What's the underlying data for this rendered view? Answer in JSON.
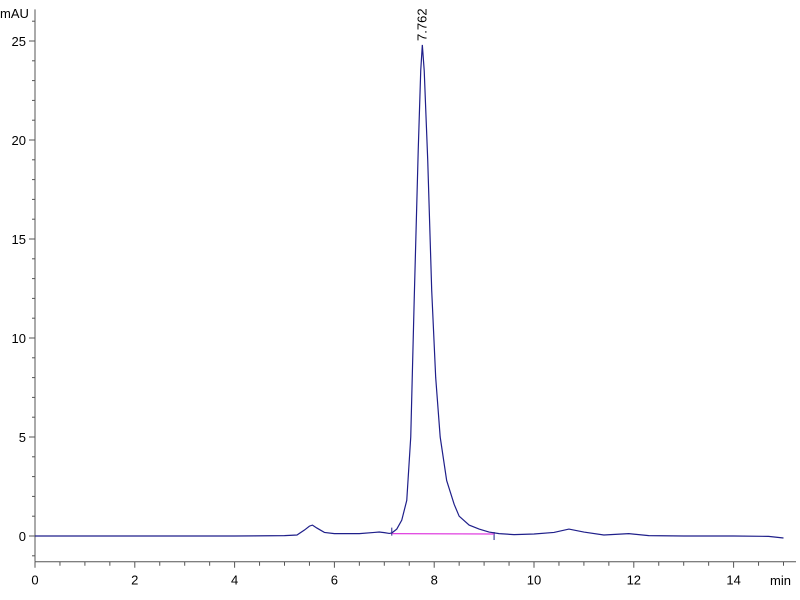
{
  "chart_data": {
    "type": "line",
    "xlabel": "min",
    "ylabel": "mAU",
    "xlim": [
      0,
      15
    ],
    "ylim": [
      -1.3,
      26.6
    ],
    "grid": false,
    "x_ticks": [
      0,
      2,
      4,
      6,
      8,
      10,
      12,
      14
    ],
    "x_tick_labels": [
      "0",
      "2",
      "4",
      "6",
      "8",
      "10",
      "12",
      "14"
    ],
    "y_ticks": [
      0,
      5,
      10,
      15,
      20,
      25
    ],
    "y_tick_labels": [
      "0",
      "5",
      "10",
      "15",
      "20",
      "25"
    ],
    "colors": {
      "trace": "#1f1f8a",
      "integration_baseline": "#e040e0",
      "axis": "#555555"
    },
    "series": [
      {
        "x": [
          0,
          1,
          2,
          3,
          4,
          5,
          5.25,
          5.4,
          5.5,
          5.56,
          5.65,
          5.8,
          6.0,
          6.5,
          6.8,
          6.9,
          7.0,
          7.1,
          7.15,
          7.25,
          7.35,
          7.45,
          7.53,
          7.6,
          7.68,
          7.73,
          7.762,
          7.8,
          7.87,
          7.95,
          8.03,
          8.12,
          8.25,
          8.4,
          8.5,
          8.7,
          8.9,
          9.1,
          9.3,
          9.6,
          10.0,
          10.4,
          10.7,
          11.0,
          11.4,
          11.9,
          12.3,
          13.0,
          14.0,
          14.7,
          15.0
        ],
        "y": [
          0,
          0,
          0,
          0,
          0,
          0.02,
          0.05,
          0.3,
          0.5,
          0.55,
          0.4,
          0.18,
          0.12,
          0.12,
          0.18,
          0.2,
          0.17,
          0.13,
          0.15,
          0.35,
          0.8,
          1.8,
          5,
          12,
          19.5,
          23.5,
          24.8,
          23.5,
          19,
          12.4,
          8,
          5,
          2.8,
          1.6,
          1.0,
          0.55,
          0.35,
          0.2,
          0.12,
          0.07,
          0.1,
          0.18,
          0.35,
          0.2,
          0.05,
          0.12,
          0.02,
          0,
          0,
          -0.02,
          -0.1
        ]
      }
    ],
    "integration_baseline": {
      "x": [
        7.15,
        9.2
      ],
      "y": [
        0.12,
        0.1
      ]
    },
    "annotations": [
      {
        "label": "7.762",
        "x": 7.762,
        "y": 24.8
      }
    ]
  }
}
